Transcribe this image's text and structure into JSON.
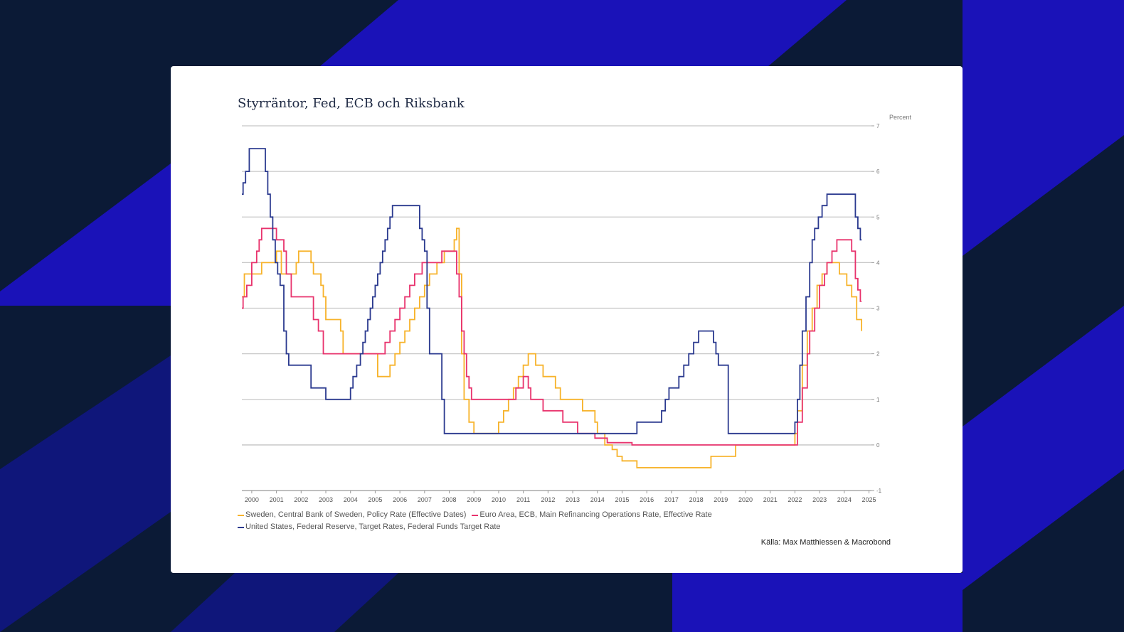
{
  "card": {
    "title": "Styrräntor, Fed, ECB och Riksbank"
  },
  "source": "Källa: Max Matthiessen & Macrobond",
  "colors": {
    "background": "#0b1a36",
    "band_blue": "#1a12b8",
    "card": "#ffffff",
    "sweden": "#f7b32b",
    "ecb": "#e8336d",
    "fed": "#2b3a8f"
  },
  "chart_data": {
    "type": "line",
    "title": "Styrräntor, Fed, ECB och Riksbank",
    "ylabel": "Percent",
    "xlabel": "",
    "ylim": [
      -1,
      7
    ],
    "xlim": [
      1999.6,
      2025.1
    ],
    "y_ticks": [
      7,
      6,
      5,
      4,
      3,
      2,
      1,
      0,
      -1
    ],
    "x_ticks": [
      "2000",
      "2001",
      "2002",
      "2003",
      "2004",
      "2005",
      "2006",
      "2007",
      "2008",
      "2009",
      "2010",
      "2011",
      "2012",
      "2013",
      "2014",
      "2015",
      "2016",
      "2017",
      "2018",
      "2019",
      "2020",
      "2021",
      "2022",
      "2023",
      "2024",
      "2025"
    ],
    "grid": true,
    "y_axis_side": "right",
    "legend_position": "bottom",
    "series": [
      {
        "name": "Sweden, Central Bank of Sweden, Policy Rate (Effective Dates)",
        "color": "#f7b32b",
        "step": true,
        "points": [
          [
            1999.6,
            3.25
          ],
          [
            1999.7,
            3.75
          ],
          [
            2000.4,
            4.0
          ],
          [
            2001.0,
            4.25
          ],
          [
            2001.2,
            3.75
          ],
          [
            2001.8,
            4.0
          ],
          [
            2001.9,
            4.25
          ],
          [
            2002.4,
            4.0
          ],
          [
            2002.5,
            3.75
          ],
          [
            2002.8,
            3.5
          ],
          [
            2002.9,
            3.25
          ],
          [
            2003.0,
            2.75
          ],
          [
            2003.6,
            2.5
          ],
          [
            2003.7,
            2.0
          ],
          [
            2004.2,
            2.0
          ],
          [
            2004.9,
            2.0
          ],
          [
            2005.1,
            1.5
          ],
          [
            2005.6,
            1.75
          ],
          [
            2005.8,
            2.0
          ],
          [
            2006.0,
            2.25
          ],
          [
            2006.2,
            2.5
          ],
          [
            2006.4,
            2.75
          ],
          [
            2006.6,
            3.0
          ],
          [
            2006.8,
            3.25
          ],
          [
            2007.0,
            3.5
          ],
          [
            2007.2,
            3.75
          ],
          [
            2007.5,
            4.0
          ],
          [
            2007.8,
            4.25
          ],
          [
            2008.2,
            4.5
          ],
          [
            2008.3,
            4.75
          ],
          [
            2008.4,
            3.75
          ],
          [
            2008.5,
            2.0
          ],
          [
            2008.6,
            1.0
          ],
          [
            2008.8,
            0.5
          ],
          [
            2009.0,
            0.25
          ],
          [
            2010.0,
            0.5
          ],
          [
            2010.2,
            0.75
          ],
          [
            2010.4,
            1.0
          ],
          [
            2010.6,
            1.25
          ],
          [
            2010.8,
            1.5
          ],
          [
            2011.0,
            1.75
          ],
          [
            2011.2,
            2.0
          ],
          [
            2011.5,
            1.75
          ],
          [
            2011.8,
            1.5
          ],
          [
            2012.3,
            1.25
          ],
          [
            2012.5,
            1.0
          ],
          [
            2013.4,
            0.75
          ],
          [
            2013.9,
            0.5
          ],
          [
            2014.0,
            0.25
          ],
          [
            2014.3,
            0.0
          ],
          [
            2014.6,
            -0.1
          ],
          [
            2014.8,
            -0.25
          ],
          [
            2015.0,
            -0.35
          ],
          [
            2015.6,
            -0.5
          ],
          [
            2018.6,
            -0.25
          ],
          [
            2019.6,
            0.0
          ],
          [
            2022.0,
            0.25
          ],
          [
            2022.1,
            0.75
          ],
          [
            2022.3,
            1.75
          ],
          [
            2022.5,
            2.5
          ],
          [
            2022.7,
            3.0
          ],
          [
            2022.9,
            3.5
          ],
          [
            2023.1,
            3.75
          ],
          [
            2023.3,
            4.0
          ],
          [
            2023.8,
            3.75
          ],
          [
            2024.1,
            3.5
          ],
          [
            2024.3,
            3.25
          ],
          [
            2024.5,
            2.75
          ],
          [
            2024.7,
            2.5
          ],
          [
            2024.7,
            2.5
          ]
        ]
      },
      {
        "name": "Euro Area, ECB, Main Refinancing Operations Rate, Effective Rate",
        "color": "#e8336d",
        "step": true,
        "points": [
          [
            1999.6,
            3.0
          ],
          [
            1999.65,
            3.25
          ],
          [
            1999.8,
            3.5
          ],
          [
            2000.0,
            4.0
          ],
          [
            2000.2,
            4.25
          ],
          [
            2000.3,
            4.5
          ],
          [
            2000.4,
            4.75
          ],
          [
            2000.8,
            4.75
          ],
          [
            2001.0,
            4.5
          ],
          [
            2001.3,
            4.25
          ],
          [
            2001.4,
            3.75
          ],
          [
            2001.6,
            3.25
          ],
          [
            2002.4,
            3.25
          ],
          [
            2002.5,
            2.75
          ],
          [
            2002.7,
            2.5
          ],
          [
            2002.9,
            2.0
          ],
          [
            2004.9,
            2.0
          ],
          [
            2005.4,
            2.25
          ],
          [
            2005.6,
            2.5
          ],
          [
            2005.8,
            2.75
          ],
          [
            2006.0,
            3.0
          ],
          [
            2006.2,
            3.25
          ],
          [
            2006.4,
            3.5
          ],
          [
            2006.6,
            3.75
          ],
          [
            2006.9,
            4.0
          ],
          [
            2007.4,
            4.0
          ],
          [
            2007.7,
            4.25
          ],
          [
            2008.3,
            3.75
          ],
          [
            2008.4,
            3.25
          ],
          [
            2008.5,
            2.5
          ],
          [
            2008.6,
            2.0
          ],
          [
            2008.7,
            1.5
          ],
          [
            2008.8,
            1.25
          ],
          [
            2008.9,
            1.0
          ],
          [
            2010.7,
            1.25
          ],
          [
            2011.0,
            1.5
          ],
          [
            2011.2,
            1.25
          ],
          [
            2011.3,
            1.0
          ],
          [
            2011.8,
            0.75
          ],
          [
            2012.6,
            0.5
          ],
          [
            2013.2,
            0.25
          ],
          [
            2013.9,
            0.15
          ],
          [
            2014.4,
            0.05
          ],
          [
            2015.4,
            0.0
          ],
          [
            2022.0,
            0.0
          ],
          [
            2022.1,
            0.5
          ],
          [
            2022.3,
            1.25
          ],
          [
            2022.5,
            2.0
          ],
          [
            2022.6,
            2.5
          ],
          [
            2022.8,
            3.0
          ],
          [
            2023.0,
            3.5
          ],
          [
            2023.2,
            3.75
          ],
          [
            2023.3,
            4.0
          ],
          [
            2023.5,
            4.25
          ],
          [
            2023.7,
            4.5
          ],
          [
            2024.3,
            4.25
          ],
          [
            2024.45,
            3.65
          ],
          [
            2024.55,
            3.4
          ],
          [
            2024.65,
            3.15
          ],
          [
            2024.7,
            3.15
          ]
        ]
      },
      {
        "name": "United States, Federal Reserve, Target Rates, Federal Funds Target Rate",
        "color": "#2b3a8f",
        "step": true,
        "points": [
          [
            1999.6,
            5.5
          ],
          [
            1999.65,
            5.75
          ],
          [
            1999.75,
            6.0
          ],
          [
            1999.9,
            6.5
          ],
          [
            2000.5,
            6.5
          ],
          [
            2000.55,
            6.0
          ],
          [
            2000.65,
            5.5
          ],
          [
            2000.75,
            5.0
          ],
          [
            2000.85,
            4.5
          ],
          [
            2000.95,
            4.0
          ],
          [
            2001.05,
            3.75
          ],
          [
            2001.15,
            3.5
          ],
          [
            2001.3,
            2.5
          ],
          [
            2001.4,
            2.0
          ],
          [
            2001.5,
            1.75
          ],
          [
            2002.3,
            1.75
          ],
          [
            2002.4,
            1.25
          ],
          [
            2002.9,
            1.25
          ],
          [
            2003.0,
            1.0
          ],
          [
            2003.9,
            1.0
          ],
          [
            2004.0,
            1.25
          ],
          [
            2004.1,
            1.5
          ],
          [
            2004.25,
            1.75
          ],
          [
            2004.4,
            2.0
          ],
          [
            2004.5,
            2.25
          ],
          [
            2004.6,
            2.5
          ],
          [
            2004.7,
            2.75
          ],
          [
            2004.8,
            3.0
          ],
          [
            2004.9,
            3.25
          ],
          [
            2005.0,
            3.5
          ],
          [
            2005.1,
            3.75
          ],
          [
            2005.2,
            4.0
          ],
          [
            2005.3,
            4.25
          ],
          [
            2005.4,
            4.5
          ],
          [
            2005.5,
            4.75
          ],
          [
            2005.6,
            5.0
          ],
          [
            2005.7,
            5.25
          ],
          [
            2006.7,
            5.25
          ],
          [
            2006.8,
            4.75
          ],
          [
            2006.9,
            4.5
          ],
          [
            2007.0,
            4.25
          ],
          [
            2007.1,
            3.0
          ],
          [
            2007.2,
            2.0
          ],
          [
            2007.6,
            2.0
          ],
          [
            2007.7,
            1.0
          ],
          [
            2007.8,
            0.25
          ],
          [
            2015.5,
            0.25
          ],
          [
            2015.6,
            0.5
          ],
          [
            2016.5,
            0.5
          ],
          [
            2016.6,
            0.75
          ],
          [
            2016.75,
            1.0
          ],
          [
            2016.9,
            1.25
          ],
          [
            2017.3,
            1.5
          ],
          [
            2017.5,
            1.75
          ],
          [
            2017.7,
            2.0
          ],
          [
            2017.9,
            2.25
          ],
          [
            2018.1,
            2.5
          ],
          [
            2018.6,
            2.5
          ],
          [
            2018.7,
            2.25
          ],
          [
            2018.8,
            2.0
          ],
          [
            2018.9,
            1.75
          ],
          [
            2019.2,
            1.75
          ],
          [
            2019.3,
            0.25
          ],
          [
            2021.9,
            0.25
          ],
          [
            2022.0,
            0.5
          ],
          [
            2022.1,
            1.0
          ],
          [
            2022.2,
            1.75
          ],
          [
            2022.3,
            2.5
          ],
          [
            2022.45,
            3.25
          ],
          [
            2022.6,
            4.0
          ],
          [
            2022.7,
            4.5
          ],
          [
            2022.8,
            4.75
          ],
          [
            2022.95,
            5.0
          ],
          [
            2023.1,
            5.25
          ],
          [
            2023.3,
            5.5
          ],
          [
            2024.35,
            5.5
          ],
          [
            2024.45,
            5.0
          ],
          [
            2024.55,
            4.75
          ],
          [
            2024.65,
            4.5
          ],
          [
            2024.7,
            4.5
          ]
        ]
      }
    ]
  }
}
